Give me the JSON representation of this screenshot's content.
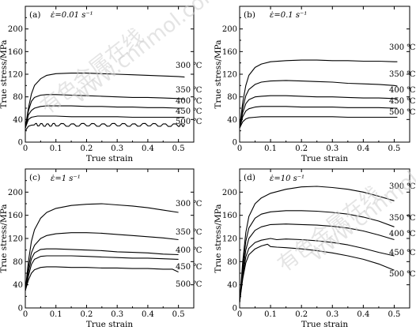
{
  "watermark": [
    "有色金属在线",
    "www.cnnmol.com"
  ],
  "chart_data": [
    {
      "type": "line",
      "panel": "(a)",
      "rate_label": "ε̇=0.01 s⁻¹",
      "xlabel": "True strain",
      "ylabel": "True stress/MPa",
      "xlim": [
        0,
        0.55
      ],
      "ylim": [
        0,
        240
      ],
      "xticks": [
        "0",
        "0.1",
        "0.2",
        "0.3",
        "0.4",
        "0.5"
      ],
      "yticks": [
        "0",
        "40",
        "80",
        "120",
        "160",
        "200"
      ],
      "series": [
        {
          "name": "300 ℃",
          "x": [
            0,
            0.01,
            0.02,
            0.03,
            0.05,
            0.07,
            0.1,
            0.15,
            0.2,
            0.25,
            0.3,
            0.35,
            0.4,
            0.45,
            0.5,
            0.52
          ],
          "y": [
            25,
            60,
            85,
            100,
            112,
            118,
            121,
            122,
            122,
            121,
            120,
            119,
            118,
            117,
            116,
            115
          ]
        },
        {
          "name": "350 ℃",
          "x": [
            0,
            0.01,
            0.02,
            0.03,
            0.05,
            0.07,
            0.1,
            0.15,
            0.2,
            0.25,
            0.3,
            0.35,
            0.4,
            0.45,
            0.5,
            0.52
          ],
          "y": [
            25,
            55,
            72,
            79,
            83,
            84,
            84,
            83,
            82,
            81,
            80,
            79,
            79,
            78,
            77,
            76
          ]
        },
        {
          "name": "400 ℃",
          "x": [
            0,
            0.01,
            0.02,
            0.03,
            0.05,
            0.07,
            0.1,
            0.15,
            0.2,
            0.25,
            0.3,
            0.35,
            0.4,
            0.45,
            0.5,
            0.52
          ],
          "y": [
            25,
            48,
            56,
            60,
            63,
            64,
            64,
            64,
            63,
            63,
            62,
            62,
            61,
            61,
            60,
            60
          ]
        },
        {
          "name": "450 ℃",
          "x": [
            0,
            0.01,
            0.02,
            0.04,
            0.07,
            0.1,
            0.15,
            0.2,
            0.25,
            0.3,
            0.35,
            0.4,
            0.45,
            0.5,
            0.52
          ],
          "y": [
            25,
            40,
            44,
            46,
            46,
            46,
            45,
            45,
            45,
            45,
            44,
            44,
            44,
            44,
            44
          ]
        },
        {
          "name": "500 ℃",
          "x": [
            0,
            0.01,
            0.02,
            0.04,
            0.07,
            0.1,
            0.15,
            0.2,
            0.25,
            0.3,
            0.35,
            0.4,
            0.45,
            0.5,
            0.52
          ],
          "y": [
            20,
            28,
            30,
            31,
            30,
            31,
            30,
            31,
            30,
            31,
            30,
            31,
            30,
            30,
            30
          ]
        }
      ]
    },
    {
      "type": "line",
      "panel": "(b)",
      "rate_label": "ε̇=0.1 s⁻¹",
      "xlabel": "True strain",
      "ylabel": "True stress/MPa",
      "xlim": [
        0,
        0.55
      ],
      "ylim": [
        0,
        240
      ],
      "xticks": [
        "0",
        "0.1",
        "0.2",
        "0.3",
        "0.4",
        "0.5"
      ],
      "yticks": [
        "0",
        "40",
        "80",
        "120",
        "160",
        "200"
      ],
      "series": [
        {
          "name": "300 ℃",
          "x": [
            0,
            0.01,
            0.02,
            0.03,
            0.05,
            0.07,
            0.1,
            0.15,
            0.2,
            0.25,
            0.3,
            0.35,
            0.4,
            0.45,
            0.5,
            0.51
          ],
          "y": [
            25,
            70,
            100,
            118,
            132,
            138,
            142,
            144,
            145,
            145,
            144,
            144,
            143,
            143,
            142,
            142
          ]
        },
        {
          "name": "350 ℃",
          "x": [
            0,
            0.01,
            0.02,
            0.03,
            0.05,
            0.07,
            0.1,
            0.15,
            0.2,
            0.25,
            0.3,
            0.35,
            0.4,
            0.45,
            0.5,
            0.51
          ],
          "y": [
            25,
            60,
            82,
            93,
            102,
            106,
            108,
            109,
            108,
            107,
            106,
            104,
            103,
            102,
            100,
            99
          ]
        },
        {
          "name": "400 ℃",
          "x": [
            0,
            0.01,
            0.02,
            0.03,
            0.05,
            0.07,
            0.1,
            0.15,
            0.2,
            0.25,
            0.3,
            0.35,
            0.4,
            0.45,
            0.5,
            0.51
          ],
          "y": [
            25,
            52,
            68,
            75,
            80,
            81,
            82,
            82,
            81,
            80,
            80,
            79,
            78,
            78,
            77,
            76
          ]
        },
        {
          "name": "450 ℃",
          "x": [
            0,
            0.01,
            0.02,
            0.03,
            0.05,
            0.07,
            0.1,
            0.15,
            0.2,
            0.25,
            0.3,
            0.35,
            0.4,
            0.45,
            0.5,
            0.51
          ],
          "y": [
            25,
            45,
            55,
            59,
            62,
            63,
            63,
            63,
            62,
            62,
            62,
            61,
            61,
            61,
            60,
            60
          ]
        },
        {
          "name": "500 ℃",
          "x": [
            0,
            0.01,
            0.02,
            0.03,
            0.05,
            0.07,
            0.1,
            0.15,
            0.2,
            0.25,
            0.3,
            0.35,
            0.4,
            0.45,
            0.5,
            0.51
          ],
          "y": [
            25,
            36,
            41,
            43,
            44,
            45,
            45,
            45,
            45,
            45,
            45,
            44,
            44,
            44,
            44,
            44
          ]
        }
      ]
    },
    {
      "type": "line",
      "panel": "(c)",
      "rate_label": "ε̇=1 s⁻¹",
      "xlabel": "True strain",
      "ylabel": "True stress/MPa",
      "xlim": [
        0,
        0.55
      ],
      "ylim": [
        0,
        240
      ],
      "xticks": [
        "0",
        "0.1",
        "0.2",
        "0.3",
        "0.4",
        "0.5"
      ],
      "yticks": [
        "0",
        "40",
        "80",
        "120",
        "160",
        "200"
      ],
      "series": [
        {
          "name": "300 ℃",
          "x": [
            0,
            0.01,
            0.02,
            0.03,
            0.05,
            0.07,
            0.1,
            0.15,
            0.2,
            0.25,
            0.3,
            0.35,
            0.4,
            0.45,
            0.5
          ],
          "y": [
            30,
            80,
            115,
            135,
            155,
            165,
            172,
            177,
            179,
            180,
            178,
            176,
            173,
            169,
            165
          ]
        },
        {
          "name": "350 ℃",
          "x": [
            0,
            0.01,
            0.02,
            0.03,
            0.05,
            0.07,
            0.1,
            0.15,
            0.2,
            0.25,
            0.3,
            0.35,
            0.4,
            0.45,
            0.5
          ],
          "y": [
            30,
            70,
            95,
            108,
            120,
            125,
            128,
            130,
            130,
            129,
            127,
            125,
            123,
            121,
            118
          ]
        },
        {
          "name": "400 ℃",
          "x": [
            0,
            0.01,
            0.02,
            0.03,
            0.05,
            0.07,
            0.1,
            0.15,
            0.2,
            0.25,
            0.3,
            0.35,
            0.4,
            0.45,
            0.5
          ],
          "y": [
            30,
            62,
            85,
            95,
            101,
            102,
            102,
            101,
            100,
            99,
            97,
            96,
            95,
            93,
            92
          ]
        },
        {
          "name": "450 ℃",
          "x": [
            0,
            0.01,
            0.02,
            0.03,
            0.05,
            0.07,
            0.1,
            0.15,
            0.2,
            0.25,
            0.3,
            0.35,
            0.4,
            0.45,
            0.5
          ],
          "y": [
            30,
            55,
            75,
            84,
            89,
            90,
            90,
            90,
            89,
            88,
            87,
            86,
            86,
            85,
            84
          ]
        },
        {
          "name": "500 ℃",
          "x": [
            0,
            0.01,
            0.02,
            0.03,
            0.05,
            0.07,
            0.1,
            0.15,
            0.2,
            0.25,
            0.3,
            0.35,
            0.4,
            0.45,
            0.48,
            0.5
          ],
          "y": [
            30,
            48,
            60,
            66,
            70,
            71,
            71,
            70,
            70,
            69,
            69,
            68,
            68,
            67,
            67,
            62
          ]
        }
      ]
    },
    {
      "type": "line",
      "panel": "(d)",
      "rate_label": "ε̇=10 s⁻¹",
      "xlabel": "True strain",
      "ylabel": "True stress/MPa",
      "xlim": [
        0,
        0.55
      ],
      "ylim": [
        0,
        240
      ],
      "xticks": [
        "0",
        "0.1",
        "0.2",
        "0.3",
        "0.4",
        "0.5"
      ],
      "yticks": [
        "0",
        "40",
        "80",
        "120",
        "160",
        "200"
      ],
      "series": [
        {
          "name": "300 ℃",
          "x": [
            0,
            0.01,
            0.02,
            0.03,
            0.05,
            0.07,
            0.1,
            0.15,
            0.2,
            0.25,
            0.3,
            0.35,
            0.4,
            0.45,
            0.5
          ],
          "y": [
            10,
            80,
            130,
            158,
            180,
            190,
            198,
            205,
            209,
            210,
            208,
            205,
            200,
            193,
            185
          ]
        },
        {
          "name": "350 ℃",
          "x": [
            0,
            0.01,
            0.02,
            0.03,
            0.05,
            0.07,
            0.1,
            0.15,
            0.2,
            0.25,
            0.3,
            0.35,
            0.4,
            0.45,
            0.5
          ],
          "y": [
            10,
            70,
            115,
            138,
            155,
            162,
            166,
            168,
            168,
            167,
            165,
            162,
            157,
            150,
            140
          ]
        },
        {
          "name": "400 ℃",
          "x": [
            0,
            0.01,
            0.02,
            0.03,
            0.05,
            0.07,
            0.1,
            0.15,
            0.2,
            0.25,
            0.3,
            0.35,
            0.4,
            0.45,
            0.5
          ],
          "y": [
            10,
            62,
            100,
            120,
            134,
            140,
            144,
            145,
            144,
            143,
            141,
            138,
            133,
            126,
            118
          ]
        },
        {
          "name": "450 ℃",
          "x": [
            0,
            0.01,
            0.02,
            0.03,
            0.05,
            0.07,
            0.1,
            0.12,
            0.15,
            0.2,
            0.25,
            0.3,
            0.35,
            0.4,
            0.45,
            0.5
          ],
          "y": [
            10,
            55,
            88,
            103,
            113,
            117,
            120,
            118,
            119,
            118,
            116,
            113,
            109,
            103,
            96,
            90
          ]
        },
        {
          "name": "500 ℃",
          "x": [
            0,
            0.01,
            0.02,
            0.03,
            0.05,
            0.07,
            0.09,
            0.1,
            0.12,
            0.15,
            0.2,
            0.25,
            0.3,
            0.35,
            0.4,
            0.45,
            0.5
          ],
          "y": [
            10,
            50,
            78,
            92,
            102,
            107,
            110,
            106,
            105,
            104,
            102,
            99,
            95,
            90,
            84,
            76,
            65
          ]
        }
      ]
    }
  ]
}
